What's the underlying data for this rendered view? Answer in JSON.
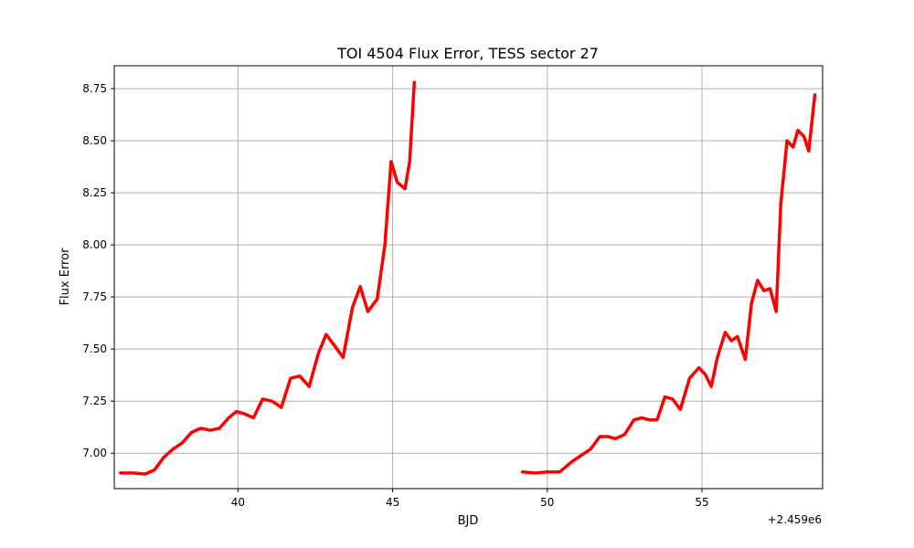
{
  "chart_data": {
    "type": "line",
    "title": "TOI 4504 Flux Error, TESS sector 27",
    "xlabel": "BJD",
    "ylabel": "Flux Error",
    "x_offset_label": "+2.459e6",
    "xlim": [
      36.0,
      58.9
    ],
    "ylim": [
      6.83,
      8.86
    ],
    "grid": true,
    "line_color": "#ff0000",
    "x_ticks": [
      40,
      45,
      50,
      55
    ],
    "y_ticks": [
      7.0,
      7.25,
      7.5,
      7.75,
      8.0,
      8.25,
      8.5,
      8.75
    ],
    "x_tick_labels": [
      "40",
      "45",
      "50",
      "55"
    ],
    "y_tick_labels": [
      "7.00",
      "7.25",
      "7.50",
      "7.75",
      "8.00",
      "8.25",
      "8.50",
      "8.75"
    ],
    "series": [
      {
        "segments": [
          {
            "x": [
              36.2,
              36.6,
              37.0,
              37.3,
              37.6,
              37.9,
              38.2,
              38.5,
              38.8,
              39.1,
              39.4,
              39.7,
              39.95,
              40.2,
              40.5,
              40.8,
              41.1,
              41.4,
              41.7,
              42.0,
              42.3,
              42.6,
              42.85,
              43.1,
              43.4,
              43.7,
              43.95,
              44.2,
              44.5,
              44.75,
              44.95,
              45.15,
              45.4,
              45.55,
              45.7
            ],
            "y": [
              6.905,
              6.905,
              6.9,
              6.92,
              6.98,
              7.02,
              7.05,
              7.1,
              7.12,
              7.11,
              7.12,
              7.17,
              7.2,
              7.19,
              7.17,
              7.26,
              7.25,
              7.22,
              7.36,
              7.37,
              7.32,
              7.48,
              7.57,
              7.52,
              7.46,
              7.7,
              7.8,
              7.68,
              7.74,
              8.0,
              8.4,
              8.3,
              8.27,
              8.4,
              8.78
            ]
          },
          {
            "x": [
              49.2,
              49.6,
              50.0,
              50.4,
              50.8,
              51.1,
              51.4,
              51.7,
              51.95,
              52.2,
              52.5,
              52.8,
              53.05,
              53.3,
              53.55,
              53.8,
              54.05,
              54.3,
              54.6,
              54.9,
              55.1,
              55.3,
              55.5,
              55.75,
              55.95,
              56.15,
              56.4,
              56.6,
              56.8,
              57.0,
              57.2,
              57.4,
              57.55,
              57.75,
              57.95,
              58.1,
              58.3,
              58.45,
              58.65
            ],
            "y": [
              6.91,
              6.905,
              6.91,
              6.91,
              6.96,
              6.99,
              7.02,
              7.08,
              7.08,
              7.07,
              7.09,
              7.16,
              7.17,
              7.16,
              7.16,
              7.27,
              7.26,
              7.21,
              7.36,
              7.41,
              7.38,
              7.32,
              7.46,
              7.58,
              7.54,
              7.56,
              7.45,
              7.72,
              7.83,
              7.78,
              7.79,
              7.68,
              8.2,
              8.5,
              8.47,
              8.55,
              8.52,
              8.45,
              8.72
            ]
          }
        ]
      }
    ]
  }
}
